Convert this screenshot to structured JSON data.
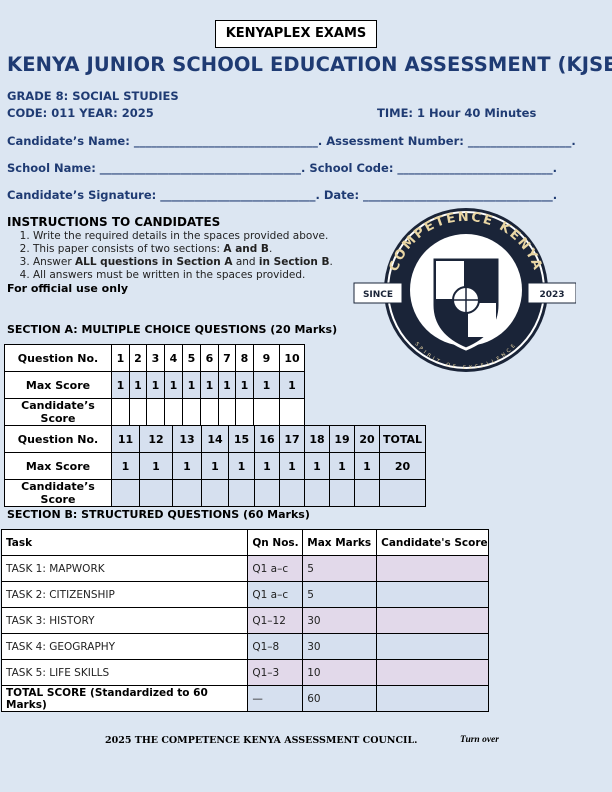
{
  "header": {
    "brand": "KENYAPLEX EXAMS",
    "title": "KENYA JUNIOR SCHOOL EDUCATION ASSESSMENT (KJSEA)",
    "grade": "GRADE 8: SOCIAL STUDIES",
    "code_year": "CODE: 011 YEAR: 2025",
    "time": "TIME: 1 Hour 40 Minutes"
  },
  "fields": {
    "name": "Candidate’s Name: ________________________________. Assessment Number: __________________.",
    "school": "School Name: ___________________________________. School Code: ___________________________.",
    "signature": "Candidate’s Signature: ___________________________. Date: _________________________________."
  },
  "instructions": {
    "heading": "INSTRUCTIONS TO CANDIDATES",
    "items": [
      [
        "Write the required details in the spaces provided above.",
        "",
        ""
      ],
      [
        "This paper consists of two sections: ",
        "A and B",
        ". "
      ],
      [
        "Answer ",
        "ALL questions in Section A",
        " and "
      ],
      [
        "All answers must be written in the spaces provided.",
        "",
        ""
      ]
    ],
    "item3_extra": "in Section B",
    "official": "For official use only"
  },
  "logo": {
    "text_top": "COMPETENCE KENYA",
    "left": "SINCE",
    "right": "2023",
    "text_bottom": "SPIRIT OF EXCELLENCE"
  },
  "section_a": {
    "heading": "SECTION A: MULTIPLE CHOICE QUESTIONS (20 Marks)",
    "labels": [
      "Question No.",
      "Max Score",
      "Candidate’s Score"
    ],
    "row1_q": [
      "1",
      "2",
      "3",
      "4",
      "5",
      "6",
      "7",
      "8",
      "9",
      "10"
    ],
    "row1_max": [
      "1",
      "1",
      "1",
      "1",
      "1",
      "1",
      "1",
      "1",
      "1",
      "1"
    ],
    "row2_q": [
      "11",
      "12",
      "13",
      "14",
      "15",
      "16",
      "17",
      "18",
      "19",
      "20",
      "TOTAL"
    ],
    "row2_max": [
      "1",
      "1",
      "1",
      "1",
      "1",
      "1",
      "1",
      "1",
      "1",
      "1",
      "20"
    ]
  },
  "section_b": {
    "heading": "SECTION B: STRUCTURED QUESTIONS (60 Marks)",
    "columns": [
      "Task",
      "Qn Nos.",
      "Max Marks",
      "Candidate's Score"
    ],
    "rows": [
      [
        "TASK 1: MAPWORK",
        "Q1 a–c",
        "5",
        ""
      ],
      [
        "TASK 2: CITIZENSHIP",
        "Q1 a–c",
        "5",
        ""
      ],
      [
        "TASK 3: HISTORY",
        "Q1–12",
        "30",
        ""
      ],
      [
        "TASK 4: GEOGRAPHY",
        "Q1–8",
        "30",
        ""
      ],
      [
        "TASK 5: LIFE SKILLS",
        "Q1–3",
        "10",
        ""
      ],
      [
        "TOTAL SCORE (Standardized to 60 Marks)",
        "—",
        "60",
        ""
      ]
    ]
  },
  "footer": {
    "council": "2025 THE COMPETENCE KENYA ASSESSMENT COUNCIL.",
    "turn": "Turn over"
  },
  "colors": {
    "navy": "#1f3b73",
    "background": "#dce6f2",
    "pink": "#e2d9ea"
  }
}
